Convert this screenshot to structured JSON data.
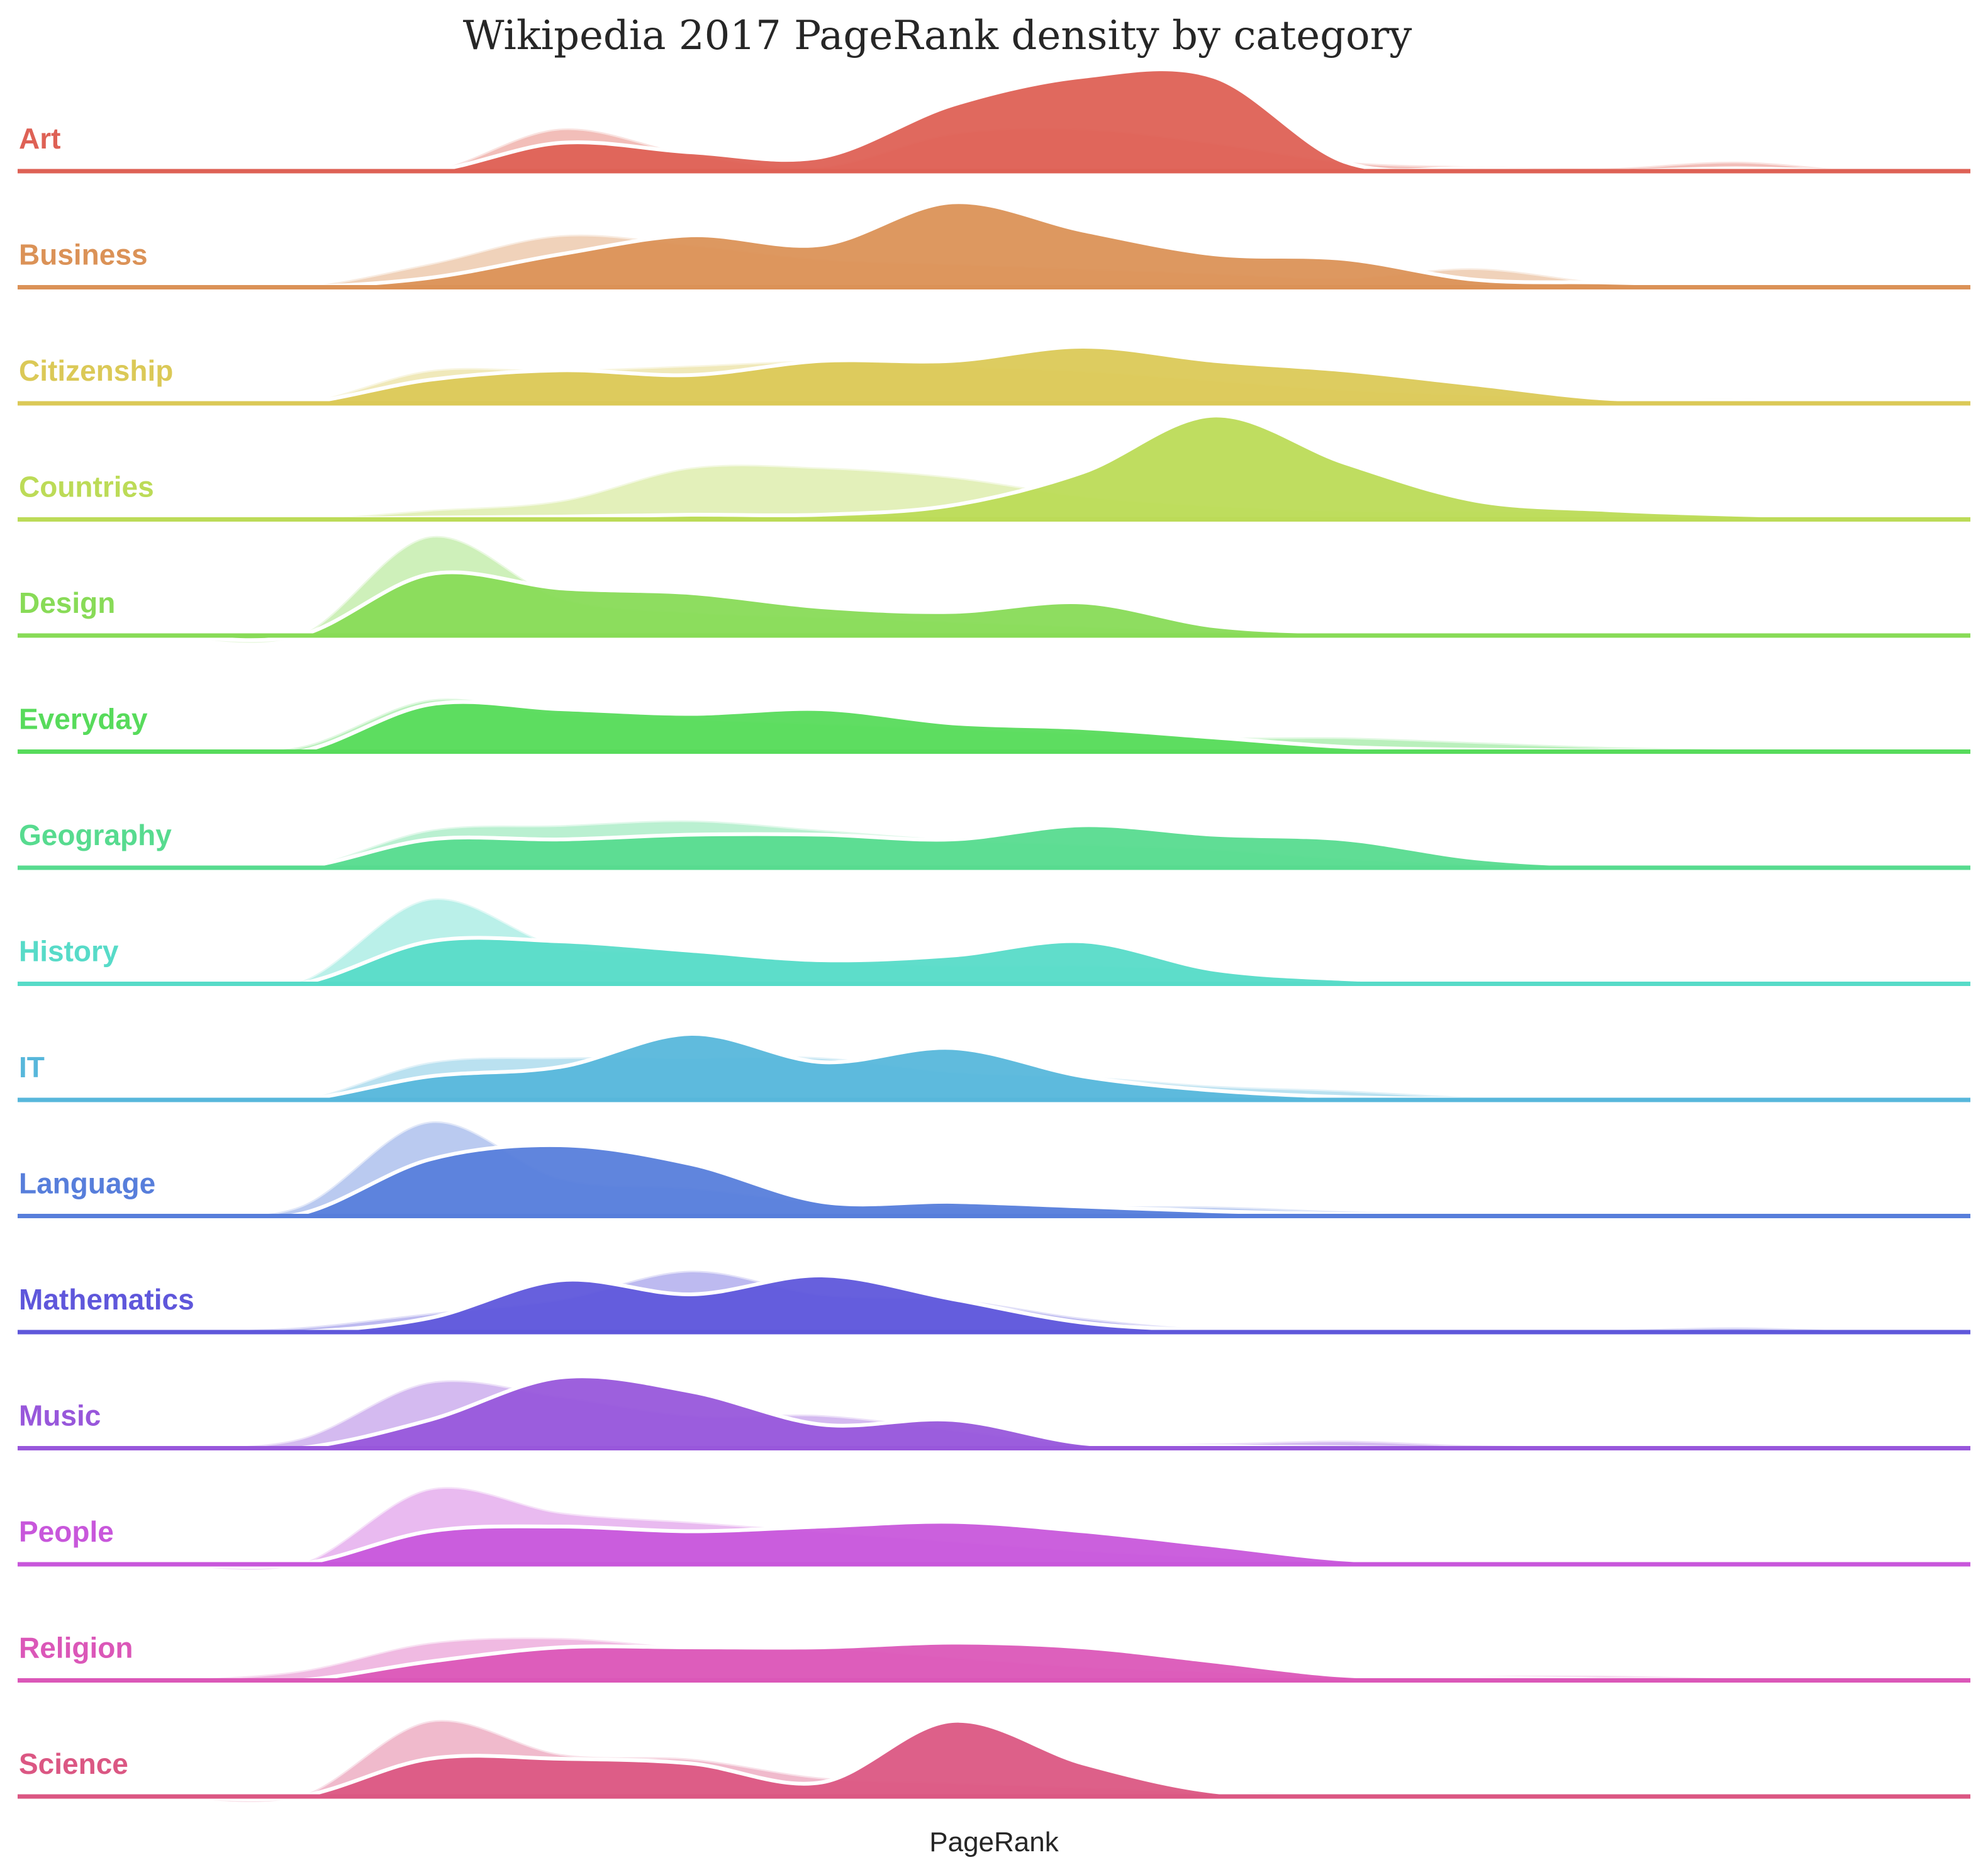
{
  "chart_data": {
    "type": "area",
    "title": "Wikipedia 2017 PageRank density by category",
    "xlabel": "PageRank",
    "ylabel": "",
    "grid": false,
    "legend": "none",
    "x": [
      0.0,
      0.05,
      0.1,
      0.15,
      0.2,
      0.25,
      0.3,
      0.35,
      0.4,
      0.45,
      0.5,
      0.55,
      0.6,
      0.65,
      0.7,
      0.75,
      0.8,
      0.85,
      0.9,
      0.95,
      1.0
    ],
    "series": [
      {
        "name": "Art",
        "color": "#de6155",
        "light": [
          0,
          0,
          0,
          0.45,
          0.18,
          0.05,
          0.4,
          0.45,
          0.3,
          0.1,
          0.05,
          0.03,
          0.1,
          0,
          0,
          0,
          0,
          0,
          0,
          0,
          0
        ],
        "dark": [
          0,
          0,
          0,
          0.3,
          0.2,
          0.15,
          0.7,
          1.0,
          1.0,
          0.1,
          0.03,
          0,
          0.03,
          0,
          0,
          0,
          0,
          0,
          0,
          0,
          0
        ]
      },
      {
        "name": "Business",
        "color": "#db9257",
        "light": [
          0,
          0,
          0.25,
          0.55,
          0.45,
          0.3,
          0.25,
          0.2,
          0.15,
          0.1,
          0.2,
          0.05,
          0.02,
          0,
          0,
          0,
          0,
          0,
          0,
          0,
          0
        ],
        "dark": [
          0,
          0,
          0.1,
          0.35,
          0.55,
          0.45,
          0.9,
          0.6,
          0.35,
          0.3,
          0.08,
          0.05,
          0.02,
          0,
          0,
          0,
          0,
          0,
          0,
          0,
          0
        ],
        "points": []
      },
      {
        "name": "Citizenship",
        "color": "#dbc957",
        "light": [
          0,
          0,
          0.35,
          0.35,
          0.4,
          0.45,
          0.4,
          0.35,
          0.25,
          0.15,
          0.1,
          0.05,
          0.05,
          0.02,
          0,
          0,
          0,
          0,
          0,
          0,
          0
        ],
        "dark": [
          0,
          0,
          0.25,
          0.35,
          0.3,
          0.45,
          0.45,
          0.6,
          0.45,
          0.35,
          0.2,
          0.05,
          0.03,
          0.02,
          0,
          0,
          0,
          0,
          0,
          0,
          0
        ]
      },
      {
        "name": "Countries",
        "color": "#bcdb57",
        "light": [
          0,
          0,
          0.1,
          0.2,
          0.55,
          0.55,
          0.45,
          0.25,
          0.15,
          0.1,
          0.1,
          0.08,
          0.05,
          0,
          0,
          0,
          0,
          0,
          0,
          0,
          0
        ],
        "dark": [
          0,
          0,
          0.02,
          0.03,
          0.05,
          0.05,
          0.15,
          0.5,
          1.1,
          0.6,
          0.2,
          0.1,
          0.05,
          0.02,
          0,
          0,
          0,
          0,
          0,
          0,
          0
        ]
      },
      {
        "name": "Design",
        "color": "#88db57",
        "light": [
          0,
          0,
          1.05,
          0.4,
          0.25,
          0.2,
          0.15,
          0.1,
          0.05,
          0.02,
          0.01,
          0,
          0,
          0,
          0,
          0,
          0,
          0,
          0,
          0,
          0
        ],
        "dark": [
          0,
          0,
          0.65,
          0.5,
          0.45,
          0.3,
          0.25,
          0.35,
          0.1,
          0.03,
          0.02,
          0.01,
          0,
          0,
          0,
          0,
          0,
          0,
          0,
          0,
          0
        ]
      },
      {
        "name": "Everyday",
        "color": "#57db5b",
        "light": [
          0,
          0.05,
          0.55,
          0.4,
          0.35,
          0.3,
          0.25,
          0.2,
          0.15,
          0.15,
          0.1,
          0.05,
          0.02,
          0,
          0,
          0,
          0,
          0,
          0,
          0,
          0
        ],
        "dark": [
          0,
          0,
          0.5,
          0.45,
          0.4,
          0.45,
          0.3,
          0.25,
          0.15,
          0.05,
          0.02,
          0.01,
          0,
          0,
          0,
          0,
          0,
          0,
          0,
          0,
          0
        ]
      },
      {
        "name": "Geography",
        "color": "#57db8f",
        "light": [
          0,
          0,
          0.4,
          0.45,
          0.5,
          0.4,
          0.3,
          0.25,
          0.2,
          0.1,
          0.05,
          0.02,
          0.01,
          0,
          0,
          0,
          0,
          0,
          0,
          0,
          0
        ],
        "dark": [
          0,
          0,
          0.3,
          0.3,
          0.35,
          0.35,
          0.3,
          0.45,
          0.35,
          0.3,
          0.1,
          0.02,
          0.01,
          0,
          0,
          0,
          0,
          0,
          0,
          0,
          0
        ]
      },
      {
        "name": "History",
        "color": "#57dbc8",
        "light": [
          0,
          0.02,
          0.9,
          0.4,
          0.35,
          0.25,
          0.2,
          0.2,
          0.15,
          0.05,
          0.03,
          0.02,
          0.02,
          0,
          0,
          0,
          0,
          0,
          0,
          0,
          0
        ],
        "dark": [
          0,
          0,
          0.45,
          0.45,
          0.35,
          0.25,
          0.3,
          0.45,
          0.15,
          0.05,
          0.02,
          0.01,
          0,
          0,
          0,
          0,
          0,
          0,
          0,
          0,
          0
        ]
      },
      {
        "name": "IT",
        "color": "#57b7db",
        "light": [
          0,
          0,
          0.4,
          0.45,
          0.45,
          0.45,
          0.3,
          0.25,
          0.15,
          0.1,
          0.03,
          0.02,
          0.01,
          0,
          0.02,
          0,
          0,
          0,
          0,
          0,
          0
        ],
        "dark": [
          0,
          0,
          0.25,
          0.35,
          0.7,
          0.4,
          0.55,
          0.25,
          0.1,
          0.03,
          0.01,
          0,
          0,
          0,
          0,
          0,
          0,
          0,
          0,
          0,
          0
        ]
      },
      {
        "name": "Language",
        "color": "#577edb",
        "light": [
          0,
          0.1,
          1.0,
          0.4,
          0.3,
          0.15,
          0.1,
          0.1,
          0.1,
          0.05,
          0.02,
          0,
          0,
          0,
          0,
          0,
          0,
          0,
          0,
          0,
          0
        ],
        "dark": [
          0,
          0.02,
          0.6,
          0.75,
          0.55,
          0.15,
          0.15,
          0.1,
          0.05,
          0.02,
          0.01,
          0,
          0,
          0,
          0,
          0,
          0,
          0,
          0,
          0,
          0
        ]
      },
      {
        "name": "Mathematics",
        "color": "#5f57db",
        "light": [
          0,
          0.05,
          0.2,
          0.35,
          0.65,
          0.4,
          0.35,
          0.15,
          0.03,
          0.02,
          0.02,
          0.02,
          0.05,
          0.01,
          0,
          0,
          0,
          0,
          0,
          0,
          0
        ],
        "dark": [
          0,
          0,
          0.15,
          0.55,
          0.4,
          0.6,
          0.35,
          0.1,
          0.02,
          0.01,
          0.01,
          0,
          0,
          0,
          0,
          0,
          0,
          0,
          0,
          0,
          0
        ]
      },
      {
        "name": "Music",
        "color": "#9857db",
        "light": [
          0,
          0.1,
          0.7,
          0.55,
          0.35,
          0.35,
          0.2,
          0.05,
          0.05,
          0.08,
          0.03,
          0.02,
          0.02,
          0,
          0,
          0,
          0,
          0,
          0,
          0,
          0
        ],
        "dark": [
          0,
          0,
          0.3,
          0.75,
          0.6,
          0.25,
          0.3,
          0.05,
          0.02,
          0.01,
          0,
          0,
          0,
          0,
          0,
          0,
          0,
          0,
          0,
          0,
          0
        ]
      },
      {
        "name": "People",
        "color": "#c857db",
        "light": [
          0,
          0,
          0.8,
          0.55,
          0.45,
          0.35,
          0.25,
          0.15,
          0.08,
          0.03,
          0.01,
          0,
          0,
          0,
          0,
          0,
          0,
          0,
          0,
          0,
          0
        ],
        "dark": [
          0,
          0,
          0.35,
          0.4,
          0.35,
          0.4,
          0.45,
          0.35,
          0.2,
          0.05,
          0.01,
          0,
          0,
          0,
          0,
          0,
          0,
          0,
          0,
          0,
          0
        ]
      },
      {
        "name": "Religion",
        "color": "#db57b8",
        "light": [
          0,
          0.1,
          0.4,
          0.45,
          0.35,
          0.35,
          0.25,
          0.15,
          0.1,
          0.05,
          0.05,
          0.05,
          0.02,
          0,
          0,
          0,
          0,
          0,
          0,
          0,
          0
        ],
        "dark": [
          0,
          0,
          0.2,
          0.35,
          0.35,
          0.35,
          0.4,
          0.35,
          0.2,
          0.05,
          0.03,
          0.01,
          0,
          0,
          0,
          0,
          0,
          0,
          0,
          0,
          0
        ]
      },
      {
        "name": "Science",
        "color": "#db5783",
        "light": [
          0,
          0,
          0.8,
          0.45,
          0.4,
          0.2,
          0.15,
          0.1,
          0.05,
          0.03,
          0.02,
          0.02,
          0.01,
          0,
          0,
          0,
          0,
          0,
          0,
          0,
          0
        ],
        "dark": [
          0,
          0,
          0.4,
          0.4,
          0.35,
          0.15,
          0.8,
          0.35,
          0.05,
          0.02,
          0.01,
          0,
          0,
          0,
          0,
          0,
          0,
          0,
          0,
          0,
          0
        ]
      }
    ]
  }
}
